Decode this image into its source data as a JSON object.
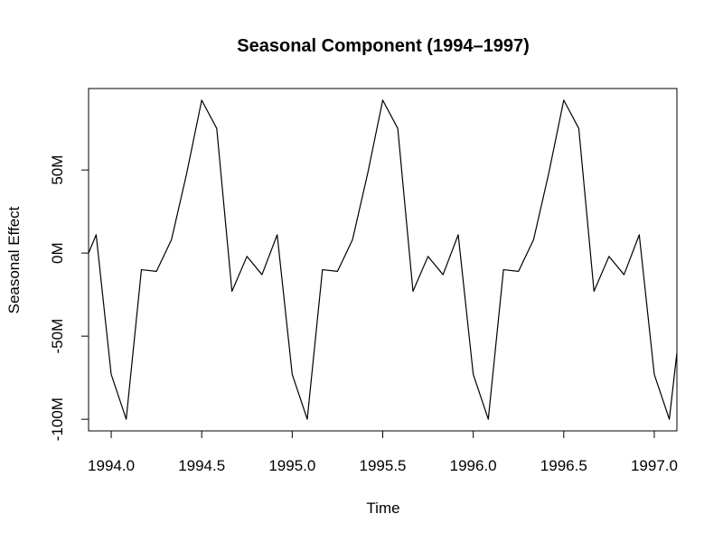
{
  "chart_data": {
    "type": "line",
    "title": "Seasonal Component (1994–1997)",
    "xlabel": "Time",
    "ylabel": "Seasonal Effect",
    "xlim": [
      1993.875,
      1997.125
    ],
    "ylim": [
      -107,
      99
    ],
    "x_ticks": [
      1994.0,
      1994.5,
      1995.0,
      1995.5,
      1996.0,
      1996.5,
      1997.0
    ],
    "x_tick_labels": [
      "1994.0",
      "1994.5",
      "1995.0",
      "1995.5",
      "1996.0",
      "1996.5",
      "1997.0"
    ],
    "y_ticks": [
      -100,
      -50,
      0,
      50
    ],
    "y_tick_labels": [
      "-100M",
      "-50M",
      "0M",
      "50M"
    ],
    "grid": false,
    "line_color": "#000000",
    "series": [
      {
        "x": [
          1993.875,
          1993.917,
          1994.0,
          1994.083,
          1994.167,
          1994.25,
          1994.333,
          1994.417,
          1994.5,
          1994.583,
          1994.667,
          1994.75,
          1994.833,
          1994.917,
          1995.0,
          1995.083,
          1995.167,
          1995.25,
          1995.333,
          1995.417,
          1995.5,
          1995.583,
          1995.667,
          1995.75,
          1995.833,
          1995.917,
          1996.0,
          1996.083,
          1996.167,
          1996.25,
          1996.333,
          1996.417,
          1996.5,
          1996.583,
          1996.667,
          1996.75,
          1996.833,
          1996.917,
          1997.0,
          1997.083,
          1997.125
        ],
        "values": [
          0,
          11,
          -73,
          -100,
          -10,
          -11,
          8,
          48,
          92,
          75,
          -23,
          -2,
          -13,
          11,
          -73,
          -100,
          -10,
          -11,
          8,
          48,
          92,
          75,
          -23,
          -2,
          -13,
          11,
          -73,
          -100,
          -10,
          -11,
          8,
          48,
          92,
          75,
          -23,
          -2,
          -13,
          11,
          -73,
          -100,
          -60
        ]
      }
    ]
  }
}
